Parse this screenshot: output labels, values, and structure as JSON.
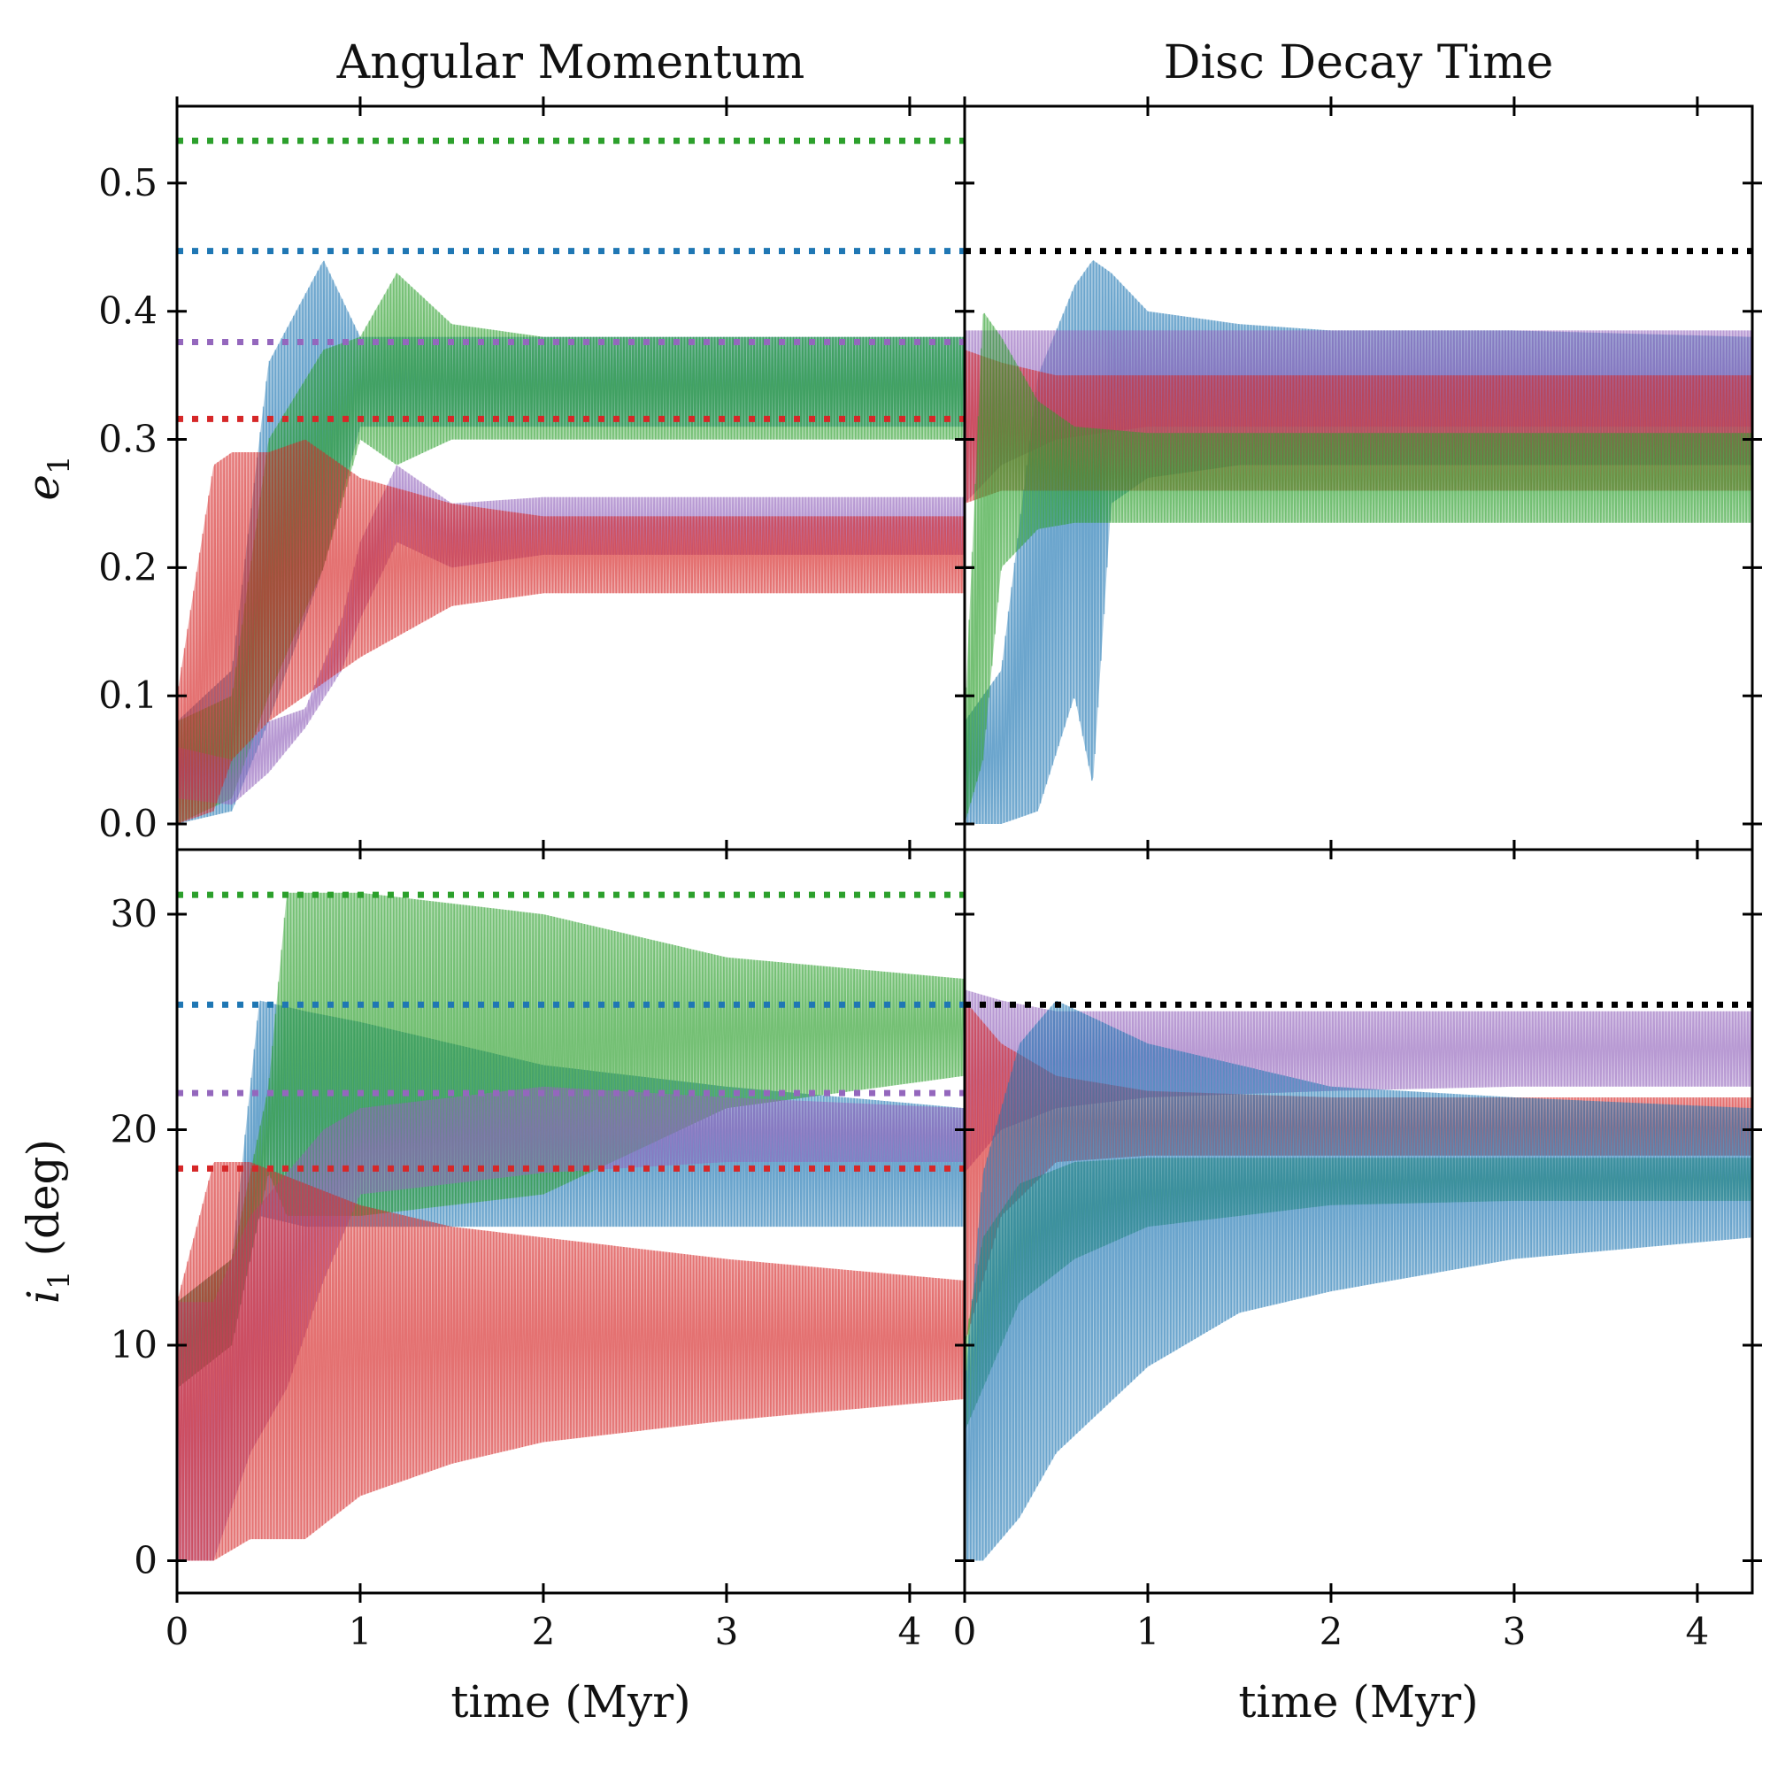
{
  "chart_data": [
    {
      "type": "line",
      "title": "Angular Momentum",
      "xlabel": "",
      "ylabel": "e_1",
      "xlim": [
        0,
        4.3
      ],
      "ylim": [
        -0.02,
        0.56
      ],
      "xticks": [
        0,
        1,
        2,
        3,
        4
      ],
      "yticks": [
        0.0,
        0.1,
        0.2,
        0.3,
        0.4,
        0.5
      ],
      "ytick_labels": [
        "0.0",
        "0.1",
        "0.2",
        "0.3",
        "0.4",
        "0.5"
      ],
      "xtick_labels": [],
      "reference_lines": [
        {
          "color": "#2ca02c",
          "y": 0.533
        },
        {
          "color": "#1f77b4",
          "y": 0.447
        },
        {
          "color": "#9467bd",
          "y": 0.376
        },
        {
          "color": "#d62728",
          "y": 0.316
        }
      ],
      "series": [
        {
          "name": "blue",
          "color": "#1f77b4",
          "x": [
            0,
            0.3,
            0.5,
            0.8,
            1.0,
            1.5,
            2.0,
            3.0,
            4.3
          ],
          "low": [
            0.0,
            0.01,
            0.08,
            0.2,
            0.31,
            0.31,
            0.31,
            0.31,
            0.31
          ],
          "high": [
            0.08,
            0.12,
            0.36,
            0.44,
            0.38,
            0.38,
            0.38,
            0.38,
            0.38
          ]
        },
        {
          "name": "green",
          "color": "#2ca02c",
          "x": [
            0,
            0.3,
            0.5,
            0.8,
            1.0,
            1.2,
            1.5,
            2.0,
            3.0,
            4.3
          ],
          "low": [
            0.0,
            0.02,
            0.1,
            0.2,
            0.3,
            0.28,
            0.3,
            0.3,
            0.3,
            0.3
          ],
          "high": [
            0.08,
            0.1,
            0.3,
            0.37,
            0.38,
            0.43,
            0.39,
            0.38,
            0.38,
            0.38
          ]
        },
        {
          "name": "purple",
          "color": "#9467bd",
          "x": [
            0,
            0.3,
            0.5,
            0.7,
            0.9,
            1.0,
            1.2,
            1.5,
            2.0,
            3.0,
            4.3
          ],
          "low": [
            0.02,
            0.015,
            0.04,
            0.075,
            0.12,
            0.16,
            0.22,
            0.2,
            0.21,
            0.21,
            0.21
          ],
          "high": [
            0.06,
            0.05,
            0.08,
            0.09,
            0.16,
            0.22,
            0.28,
            0.25,
            0.255,
            0.255,
            0.255
          ]
        },
        {
          "name": "red",
          "color": "#d62728",
          "x": [
            0,
            0.2,
            0.3,
            0.5,
            0.7,
            1.0,
            1.5,
            2.0,
            3.0,
            4.3
          ],
          "low": [
            0.0,
            0.01,
            0.05,
            0.08,
            0.1,
            0.13,
            0.17,
            0.18,
            0.18,
            0.18
          ],
          "high": [
            0.1,
            0.28,
            0.29,
            0.29,
            0.3,
            0.27,
            0.25,
            0.24,
            0.24,
            0.24
          ]
        }
      ]
    },
    {
      "type": "line",
      "title": "Disc Decay Time",
      "xlabel": "",
      "ylabel": "",
      "xlim": [
        0,
        4.3
      ],
      "ylim": [
        -0.02,
        0.56
      ],
      "xticks": [
        0,
        1,
        2,
        3,
        4
      ],
      "yticks": [
        0.0,
        0.1,
        0.2,
        0.3,
        0.4,
        0.5
      ],
      "ytick_labels": [],
      "xtick_labels": [],
      "reference_lines": [
        {
          "color": "#000000",
          "y": 0.447
        }
      ],
      "series": [
        {
          "name": "blue",
          "color": "#1f77b4",
          "x": [
            0,
            0.2,
            0.4,
            0.6,
            0.7,
            0.8,
            1.0,
            1.5,
            2.0,
            3.0,
            4.3
          ],
          "low": [
            0.0,
            0.0,
            0.01,
            0.1,
            0.03,
            0.25,
            0.27,
            0.28,
            0.28,
            0.28,
            0.28
          ],
          "high": [
            0.08,
            0.12,
            0.35,
            0.42,
            0.44,
            0.43,
            0.4,
            0.39,
            0.385,
            0.385,
            0.38
          ]
        },
        {
          "name": "purple",
          "color": "#9467bd",
          "x": [
            0,
            0.2,
            0.5,
            1.0,
            2.0,
            3.0,
            4.3
          ],
          "low": [
            0.25,
            0.28,
            0.3,
            0.31,
            0.31,
            0.31,
            0.31
          ],
          "high": [
            0.385,
            0.385,
            0.385,
            0.385,
            0.385,
            0.385,
            0.385
          ]
        },
        {
          "name": "red",
          "color": "#d62728",
          "x": [
            0,
            0.2,
            0.5,
            1.0,
            2.0,
            3.0,
            4.3
          ],
          "low": [
            0.25,
            0.26,
            0.26,
            0.26,
            0.26,
            0.26,
            0.26
          ],
          "high": [
            0.37,
            0.36,
            0.35,
            0.35,
            0.35,
            0.35,
            0.35
          ]
        },
        {
          "name": "green",
          "color": "#2ca02c",
          "x": [
            0,
            0.1,
            0.2,
            0.4,
            0.6,
            1.0,
            2.0,
            3.0,
            4.3
          ],
          "low": [
            0.0,
            0.05,
            0.2,
            0.23,
            0.235,
            0.235,
            0.235,
            0.235,
            0.235
          ],
          "high": [
            0.08,
            0.4,
            0.38,
            0.33,
            0.31,
            0.305,
            0.305,
            0.305,
            0.305
          ]
        }
      ]
    },
    {
      "type": "line",
      "title": "",
      "xlabel": "time (Myr)",
      "ylabel": "i_1 (deg)",
      "xlim": [
        0,
        4.3
      ],
      "ylim": [
        -1.5,
        33
      ],
      "xticks": [
        0,
        1,
        2,
        3,
        4
      ],
      "yticks": [
        0,
        10,
        20,
        30
      ],
      "ytick_labels": [
        "0",
        "10",
        "20",
        "30"
      ],
      "xtick_labels": [
        "0",
        "1",
        "2",
        "3",
        "4"
      ],
      "reference_lines": [
        {
          "color": "#2ca02c",
          "y": 30.9
        },
        {
          "color": "#1f77b4",
          "y": 25.8
        },
        {
          "color": "#9467bd",
          "y": 21.7
        },
        {
          "color": "#d62728",
          "y": 18.2
        }
      ],
      "series": [
        {
          "name": "blue",
          "color": "#1f77b4",
          "x": [
            0,
            0.3,
            0.45,
            0.7,
            1.0,
            2.0,
            3.0,
            4.3
          ],
          "low": [
            8,
            10,
            16,
            15.5,
            15.5,
            15.5,
            15.5,
            15.5
          ],
          "high": [
            12,
            14,
            26,
            25.5,
            25,
            23,
            22,
            21
          ]
        },
        {
          "name": "green",
          "color": "#2ca02c",
          "x": [
            0,
            0.3,
            0.5,
            0.6,
            1.0,
            2.0,
            3.0,
            4.3
          ],
          "low": [
            8,
            10,
            18,
            16,
            16,
            17,
            21,
            22.5
          ],
          "high": [
            12,
            14,
            22,
            31,
            31,
            30,
            28,
            27
          ]
        },
        {
          "name": "purple",
          "color": "#9467bd",
          "x": [
            0,
            0.2,
            0.4,
            0.6,
            0.8,
            1.0,
            2.0,
            3.0,
            4.3
          ],
          "low": [
            0,
            0,
            5,
            8,
            13,
            17,
            18,
            18.5,
            18.5
          ],
          "high": [
            12,
            12,
            16,
            18,
            20,
            21,
            22,
            21.5,
            21
          ]
        },
        {
          "name": "red",
          "color": "#d62728",
          "x": [
            0,
            0.2,
            0.4,
            0.7,
            1.0,
            1.5,
            2.0,
            3.0,
            4.3
          ],
          "low": [
            0,
            0,
            1,
            1,
            3,
            4.5,
            5.5,
            6.5,
            7.5
          ],
          "high": [
            12,
            18.5,
            18.5,
            17.5,
            16.5,
            15.5,
            15,
            14,
            13
          ]
        }
      ]
    },
    {
      "type": "line",
      "title": "",
      "xlabel": "time (Myr)",
      "ylabel": "",
      "xlim": [
        0,
        4.3
      ],
      "ylim": [
        -1.5,
        33
      ],
      "xticks": [
        0,
        1,
        2,
        3,
        4
      ],
      "yticks": [
        0,
        10,
        20,
        30
      ],
      "ytick_labels": [],
      "xtick_labels": [
        "0",
        "1",
        "2",
        "3",
        "4"
      ],
      "reference_lines": [
        {
          "color": "#000000",
          "y": 25.8
        }
      ],
      "series": [
        {
          "name": "purple",
          "color": "#9467bd",
          "x": [
            0,
            0.2,
            0.5,
            1.0,
            2.0,
            3.0,
            4.3
          ],
          "low": [
            18,
            20,
            21,
            21.5,
            21.8,
            22,
            22
          ],
          "high": [
            26.5,
            26,
            25.5,
            25.5,
            25.5,
            25.5,
            25.5
          ]
        },
        {
          "name": "red",
          "color": "#d62728",
          "x": [
            0,
            0.2,
            0.5,
            1.0,
            2.0,
            3.0,
            4.3
          ],
          "low": [
            10,
            16,
            18.5,
            18.8,
            18.8,
            18.8,
            18.8
          ],
          "high": [
            26,
            24,
            22.5,
            21.8,
            21.5,
            21.5,
            21.5
          ]
        },
        {
          "name": "green",
          "color": "#2ca02c",
          "x": [
            0,
            0.1,
            0.3,
            0.6,
            1.0,
            2.0,
            3.0,
            4.3
          ],
          "low": [
            6,
            8,
            12,
            14,
            15.5,
            16.5,
            16.7,
            16.7
          ],
          "high": [
            10,
            15,
            17.5,
            18.5,
            18.7,
            18.7,
            18.7,
            18.7
          ]
        },
        {
          "name": "blue",
          "color": "#1f77b4",
          "x": [
            0,
            0.1,
            0.3,
            0.5,
            1.0,
            1.5,
            2.0,
            3.0,
            4.3
          ],
          "low": [
            0,
            0,
            2,
            5,
            9,
            11.5,
            12.5,
            14,
            15
          ],
          "high": [
            8,
            18,
            24,
            26,
            24,
            23,
            22,
            21.5,
            21
          ]
        }
      ]
    }
  ]
}
